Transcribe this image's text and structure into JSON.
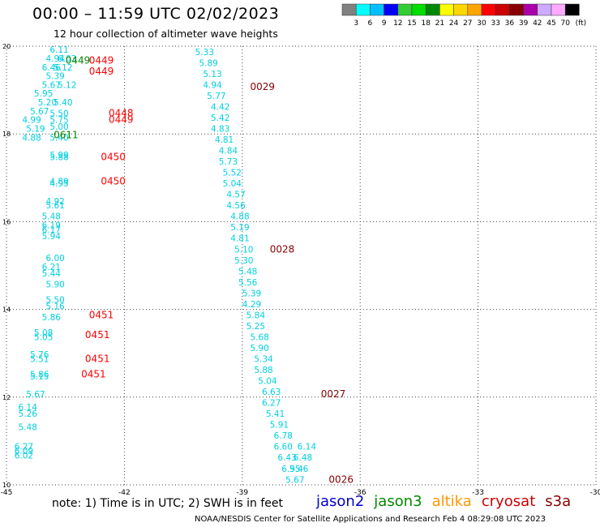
{
  "header": {
    "title": "00:00 – 11:59 UTC 02/02/2023",
    "subtitle": "12 hour collection of altimeter wave heights"
  },
  "colorbar": {
    "unit": "(ft)",
    "ticks": [
      "3",
      "6",
      "9",
      "12",
      "15",
      "18",
      "21",
      "24",
      "27",
      "30",
      "33",
      "36",
      "39",
      "42",
      "45",
      "70"
    ],
    "colors": [
      "#808080",
      "#00ffff",
      "#00bfff",
      "#0000ff",
      "#33cc33",
      "#00dd00",
      "#008800",
      "#ffff00",
      "#ffd700",
      "#ffa500",
      "#ff0000",
      "#cc0000",
      "#880000",
      "#aa00aa",
      "#ccaaff",
      "#ffaaff",
      "#000000"
    ]
  },
  "footer": {
    "note": "note:  1) Time is in UTC;  2) SWH is in feet",
    "credit": "NOAA/NESDIS Center for Satellite Applications and Research    Feb  4 08:29:08 UTC 2023",
    "satellites": [
      {
        "name": "jason2",
        "color": "#0000cc"
      },
      {
        "name": "jason3",
        "color": "#008800"
      },
      {
        "name": "altika",
        "color": "#ff9900"
      },
      {
        "name": "cryosat",
        "color": "#cc0000"
      },
      {
        "name": "s3a",
        "color": "#880000"
      }
    ]
  },
  "chart_data": {
    "type": "scatter",
    "title": "00:00 – 11:59 UTC 02/02/2023",
    "subtitle": "12 hour collection of altimeter wave heights",
    "xlim": [
      -45,
      -30
    ],
    "ylim": [
      10,
      20
    ],
    "x_ticks": [
      "-45",
      "-42",
      "-39",
      "-36",
      "-33",
      "-30"
    ],
    "y_ticks": [
      "10",
      "12",
      "14",
      "16",
      "18",
      "20"
    ],
    "grid": "dotted",
    "series": [
      {
        "name": "cyan wave heights (ft), west track",
        "color": "#00d0e0",
        "points": [
          {
            "x": -43.9,
            "y": 19.85,
            "label": "6.11"
          },
          {
            "x": -44.0,
            "y": 19.65,
            "label": "4.94"
          },
          {
            "x": -43.7,
            "y": 19.65,
            "label": "6.03"
          },
          {
            "x": -44.1,
            "y": 19.45,
            "label": "6.46"
          },
          {
            "x": -43.8,
            "y": 19.45,
            "label": "5.12"
          },
          {
            "x": -44.0,
            "y": 19.25,
            "label": "5.39"
          },
          {
            "x": -44.1,
            "y": 19.05,
            "label": "5.67"
          },
          {
            "x": -43.7,
            "y": 19.05,
            "label": "5.12"
          },
          {
            "x": -44.3,
            "y": 18.85,
            "label": "5.95"
          },
          {
            "x": -44.2,
            "y": 18.65,
            "label": "5.20"
          },
          {
            "x": -43.8,
            "y": 18.65,
            "label": "5.40"
          },
          {
            "x": -44.4,
            "y": 18.45,
            "label": "5.67"
          },
          {
            "x": -43.9,
            "y": 18.4,
            "label": "5.50"
          },
          {
            "x": -44.6,
            "y": 18.25,
            "label": "4.99"
          },
          {
            "x": -43.9,
            "y": 18.25,
            "label": "5.75"
          },
          {
            "x": -43.9,
            "y": 18.1,
            "label": "5.00"
          },
          {
            "x": -44.5,
            "y": 18.05,
            "label": "5.19"
          },
          {
            "x": -44.6,
            "y": 17.85,
            "label": "4.88"
          },
          {
            "x": -43.9,
            "y": 17.85,
            "label": "5.40"
          },
          {
            "x": -43.9,
            "y": 17.45,
            "label": "5.99"
          },
          {
            "x": -43.9,
            "y": 17.4,
            "label": "5.88"
          },
          {
            "x": -43.9,
            "y": 16.85,
            "label": "4.89"
          },
          {
            "x": -43.9,
            "y": 16.8,
            "label": "4.95"
          },
          {
            "x": -44.0,
            "y": 16.4,
            "label": "4.92"
          },
          {
            "x": -44.0,
            "y": 16.3,
            "label": "5.61"
          },
          {
            "x": -44.1,
            "y": 16.05,
            "label": "5.48"
          },
          {
            "x": -44.1,
            "y": 15.85,
            "label": "6.19"
          },
          {
            "x": -44.1,
            "y": 15.75,
            "label": "6.17"
          },
          {
            "x": -44.1,
            "y": 15.6,
            "label": "5.94"
          },
          {
            "x": -44.0,
            "y": 15.1,
            "label": "6.00"
          },
          {
            "x": -44.1,
            "y": 14.9,
            "label": "6.21"
          },
          {
            "x": -44.1,
            "y": 14.75,
            "label": "5.44"
          },
          {
            "x": -44.0,
            "y": 14.5,
            "label": "5.90"
          },
          {
            "x": -44.0,
            "y": 14.15,
            "label": "5.50"
          },
          {
            "x": -44.0,
            "y": 14.0,
            "label": "5.16"
          },
          {
            "x": -44.1,
            "y": 13.75,
            "label": "5.86"
          },
          {
            "x": -44.3,
            "y": 13.4,
            "label": "5.08"
          },
          {
            "x": -44.3,
            "y": 13.3,
            "label": "5.05"
          },
          {
            "x": -44.4,
            "y": 12.9,
            "label": "5.76"
          },
          {
            "x": -44.4,
            "y": 12.8,
            "label": "5.51"
          },
          {
            "x": -44.4,
            "y": 12.45,
            "label": "5.86"
          },
          {
            "x": -44.4,
            "y": 12.4,
            "label": "5.15"
          },
          {
            "x": -44.5,
            "y": 12.0,
            "label": "5.67"
          },
          {
            "x": -44.7,
            "y": 11.7,
            "label": "6.14"
          },
          {
            "x": -44.7,
            "y": 11.55,
            "label": "5.26"
          },
          {
            "x": -44.7,
            "y": 11.25,
            "label": "5.48"
          },
          {
            "x": -44.8,
            "y": 10.8,
            "label": "6.27"
          },
          {
            "x": -44.8,
            "y": 10.7,
            "label": "6.09"
          },
          {
            "x": -44.8,
            "y": 10.6,
            "label": "6.02"
          }
        ]
      },
      {
        "name": "cyan wave heights (ft), center track",
        "color": "#00d0e0",
        "points": [
          {
            "x": -40.2,
            "y": 19.8,
            "label": "5.33"
          },
          {
            "x": -40.1,
            "y": 19.55,
            "label": "5.89"
          },
          {
            "x": -40.0,
            "y": 19.3,
            "label": "5.13"
          },
          {
            "x": -40.0,
            "y": 19.05,
            "label": "4.94"
          },
          {
            "x": -39.9,
            "y": 18.8,
            "label": "5.77"
          },
          {
            "x": -39.8,
            "y": 18.55,
            "label": "4.42"
          },
          {
            "x": -39.8,
            "y": 18.3,
            "label": "5.42"
          },
          {
            "x": -39.8,
            "y": 18.05,
            "label": "4.83"
          },
          {
            "x": -39.7,
            "y": 17.8,
            "label": "4.81"
          },
          {
            "x": -39.6,
            "y": 17.55,
            "label": "4.84"
          },
          {
            "x": -39.6,
            "y": 17.3,
            "label": "5.73"
          },
          {
            "x": -39.5,
            "y": 17.05,
            "label": "5.52"
          },
          {
            "x": -39.5,
            "y": 16.8,
            "label": "5.04"
          },
          {
            "x": -39.4,
            "y": 16.55,
            "label": "4.57"
          },
          {
            "x": -39.4,
            "y": 16.3,
            "label": "4.56"
          },
          {
            "x": -39.3,
            "y": 16.05,
            "label": "4.88"
          },
          {
            "x": -39.3,
            "y": 15.8,
            "label": "5.19"
          },
          {
            "x": -39.3,
            "y": 15.55,
            "label": "4.81"
          },
          {
            "x": -39.2,
            "y": 15.3,
            "label": "5.10"
          },
          {
            "x": -39.2,
            "y": 15.05,
            "label": "5.30"
          },
          {
            "x": -39.1,
            "y": 14.8,
            "label": "5.48"
          },
          {
            "x": -39.1,
            "y": 14.55,
            "label": "5.56"
          },
          {
            "x": -39.0,
            "y": 14.3,
            "label": "5.39"
          },
          {
            "x": -39.0,
            "y": 14.05,
            "label": "4.29"
          },
          {
            "x": -38.9,
            "y": 13.8,
            "label": "5.84"
          },
          {
            "x": -38.9,
            "y": 13.55,
            "label": "5.25"
          },
          {
            "x": -38.8,
            "y": 13.3,
            "label": "5.68"
          },
          {
            "x": -38.8,
            "y": 13.05,
            "label": "5.90"
          },
          {
            "x": -38.7,
            "y": 12.8,
            "label": "5.34"
          },
          {
            "x": -38.7,
            "y": 12.55,
            "label": "5.88"
          },
          {
            "x": -38.6,
            "y": 12.3,
            "label": "5.04"
          },
          {
            "x": -38.5,
            "y": 12.05,
            "label": "6.63"
          },
          {
            "x": -38.5,
            "y": 11.8,
            "label": "6.27"
          },
          {
            "x": -38.4,
            "y": 11.55,
            "label": "5.41"
          },
          {
            "x": -38.3,
            "y": 11.3,
            "label": "5.91"
          },
          {
            "x": -38.2,
            "y": 11.05,
            "label": "6.78"
          },
          {
            "x": -38.2,
            "y": 10.8,
            "label": "6.60"
          },
          {
            "x": -38.1,
            "y": 10.55,
            "label": "6.43"
          },
          {
            "x": -38.0,
            "y": 10.3,
            "label": "6.95"
          },
          {
            "x": -37.9,
            "y": 10.05,
            "label": "5.67"
          },
          {
            "x": -37.8,
            "y": 10.3,
            "label": "5.46"
          },
          {
            "x": -37.7,
            "y": 10.55,
            "label": "6.48"
          },
          {
            "x": -37.6,
            "y": 10.8,
            "label": "6.14"
          }
        ]
      },
      {
        "name": "time labels (UTC)",
        "points": [
          {
            "x": -43.5,
            "y": 19.6,
            "label": "0449",
            "color": "#008800"
          },
          {
            "x": -42.9,
            "y": 19.6,
            "label": "0449",
            "color": "#ff0000"
          },
          {
            "x": -42.9,
            "y": 19.35,
            "label": "0449",
            "color": "#ff0000"
          },
          {
            "x": -42.4,
            "y": 18.4,
            "label": "0448",
            "color": "#ff0000"
          },
          {
            "x": -42.4,
            "y": 18.25,
            "label": "0449",
            "color": "#ff0000"
          },
          {
            "x": -43.8,
            "y": 17.9,
            "label": "0611",
            "color": "#008800"
          },
          {
            "x": -42.6,
            "y": 17.4,
            "label": "0450",
            "color": "#ff0000"
          },
          {
            "x": -42.6,
            "y": 16.85,
            "label": "0450",
            "color": "#ff0000"
          },
          {
            "x": -42.9,
            "y": 13.8,
            "label": "0451",
            "color": "#ff0000"
          },
          {
            "x": -43.0,
            "y": 13.35,
            "label": "0451",
            "color": "#ff0000"
          },
          {
            "x": -43.0,
            "y": 12.8,
            "label": "0451",
            "color": "#ff0000"
          },
          {
            "x": -43.1,
            "y": 12.45,
            "label": "0451",
            "color": "#ff0000"
          },
          {
            "x": -38.8,
            "y": 19.0,
            "label": "0029",
            "color": "#880000"
          },
          {
            "x": -38.3,
            "y": 15.3,
            "label": "0028",
            "color": "#880000"
          },
          {
            "x": -37.0,
            "y": 12.0,
            "label": "0027",
            "color": "#880000"
          },
          {
            "x": -36.8,
            "y": 10.05,
            "label": "0026",
            "color": "#880000"
          }
        ]
      }
    ]
  }
}
